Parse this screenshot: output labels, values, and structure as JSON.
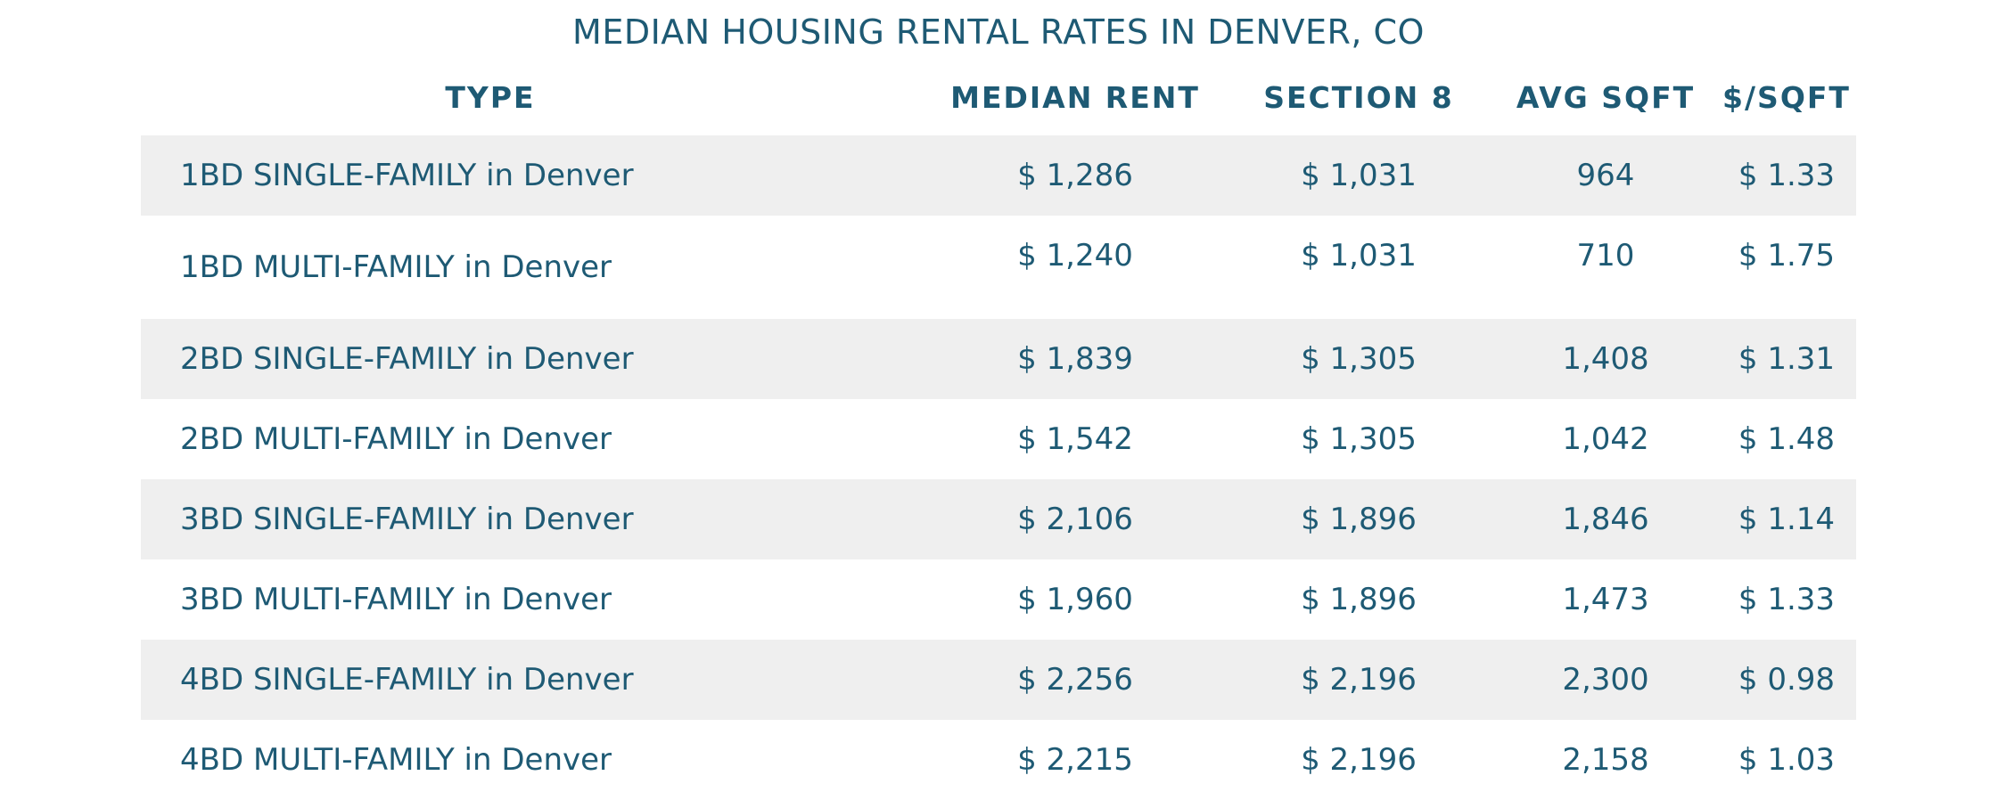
{
  "title": "MEDIAN HOUSING RENTAL RATES IN DENVER, CO",
  "headers": {
    "type": "TYPE",
    "median_rent": "MEDIAN RENT",
    "section8": "SECTION 8",
    "avg_sqft": "AVG SQFT",
    "price_per_sqft": "$/SQFT"
  },
  "rows": [
    {
      "type": "1BD SINGLE-FAMILY in Denver",
      "median_rent": "$ 1,286",
      "section8": "$ 1,031",
      "avg_sqft": "964",
      "price_per_sqft": "$ 1.33"
    },
    {
      "type": "1BD MULTI-FAMILY in Denver",
      "median_rent": "$ 1,240",
      "section8": "$ 1,031",
      "avg_sqft": "710",
      "price_per_sqft": "$ 1.75"
    },
    {
      "type": "2BD SINGLE-FAMILY in Denver",
      "median_rent": "$ 1,839",
      "section8": "$ 1,305",
      "avg_sqft": "1,408",
      "price_per_sqft": "$ 1.31"
    },
    {
      "type": "2BD MULTI-FAMILY in Denver",
      "median_rent": "$ 1,542",
      "section8": "$ 1,305",
      "avg_sqft": "1,042",
      "price_per_sqft": "$ 1.48"
    },
    {
      "type": "3BD SINGLE-FAMILY in Denver",
      "median_rent": "$ 2,106",
      "section8": "$ 1,896",
      "avg_sqft": "1,846",
      "price_per_sqft": "$ 1.14"
    },
    {
      "type": "3BD MULTI-FAMILY in Denver",
      "median_rent": "$ 1,960",
      "section8": "$ 1,896",
      "avg_sqft": "1,473",
      "price_per_sqft": "$ 1.33"
    },
    {
      "type": "4BD SINGLE-FAMILY in Denver",
      "median_rent": "$ 2,256",
      "section8": "$ 2,196",
      "avg_sqft": "2,300",
      "price_per_sqft": "$ 0.98"
    },
    {
      "type": "4BD MULTI-FAMILY in Denver",
      "median_rent": "$ 2,215",
      "section8": "$ 2,196",
      "avg_sqft": "2,158",
      "price_per_sqft": "$ 1.03"
    }
  ]
}
